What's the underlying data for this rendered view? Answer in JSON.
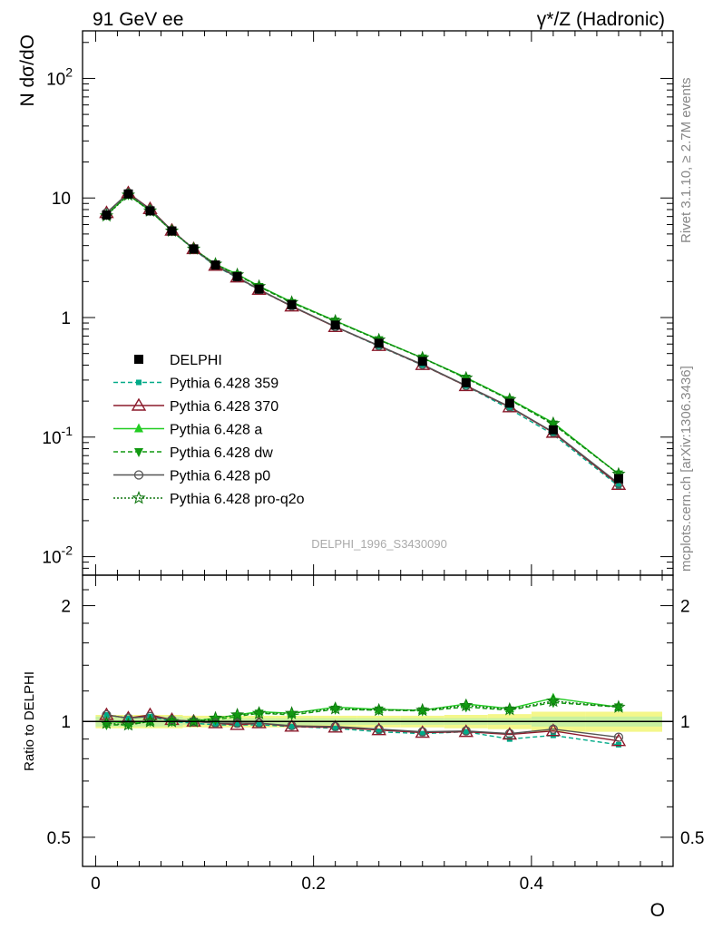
{
  "header": {
    "left_title": "91 GeV ee",
    "right_title": "γ*/Z (Hadronic)"
  },
  "side_labels": {
    "rivet": "Rivet 3.1.10, ≥ 2.7M events",
    "mcplots": "mcplots.cern.ch [arXiv:1306.3436]"
  },
  "watermark": "DELPHI_1996_S3430090",
  "chart_data": [
    {
      "type": "line",
      "panel": "main",
      "ylabel": "N dσ/dO",
      "yscale": "log",
      "ylim": [
        0.007,
        250
      ],
      "xlim": [
        -0.012,
        0.53
      ],
      "ytick_labels": [
        "10^-2",
        "10^-1",
        "1",
        "10",
        "10^2"
      ],
      "x": [
        0.01,
        0.03,
        0.05,
        0.07,
        0.09,
        0.11,
        0.13,
        0.15,
        0.18,
        0.22,
        0.26,
        0.3,
        0.34,
        0.38,
        0.42,
        0.48
      ],
      "series": [
        {
          "name": "DELPHI",
          "color": "#000000",
          "values": [
            7.2,
            10.8,
            7.8,
            5.3,
            3.75,
            2.75,
            2.2,
            1.73,
            1.28,
            0.865,
            0.61,
            0.43,
            0.285,
            0.192,
            0.115,
            0.045
          ]
        },
        {
          "name": "Pythia 6.428 359",
          "color": "#00aa88",
          "values": [
            7.5,
            11.0,
            8.0,
            5.3,
            3.7,
            2.7,
            2.15,
            1.7,
            1.24,
            0.835,
            0.575,
            0.4,
            0.268,
            0.172,
            0.105,
            0.039
          ]
        },
        {
          "name": "Pythia 6.428 370",
          "color": "#8b1a2b",
          "values": [
            7.5,
            11.0,
            8.1,
            5.35,
            3.75,
            2.72,
            2.17,
            1.71,
            1.24,
            0.835,
            0.58,
            0.402,
            0.268,
            0.178,
            0.109,
            0.04
          ]
        },
        {
          "name": "Pythia 6.428 a",
          "color": "#22cc22",
          "values": [
            7.2,
            10.7,
            7.8,
            5.3,
            3.75,
            2.8,
            2.3,
            1.83,
            1.35,
            0.94,
            0.655,
            0.46,
            0.315,
            0.208,
            0.132,
            0.049
          ]
        },
        {
          "name": "Pythia 6.428 dw",
          "color": "#119911",
          "values": [
            7.2,
            10.6,
            7.8,
            5.3,
            3.75,
            2.78,
            2.27,
            1.81,
            1.33,
            0.93,
            0.65,
            0.458,
            0.31,
            0.205,
            0.128,
            0.049
          ]
        },
        {
          "name": "Pythia 6.428 p0",
          "color": "#555555",
          "values": [
            7.5,
            11.0,
            8.0,
            5.35,
            3.75,
            2.74,
            2.18,
            1.72,
            1.25,
            0.84,
            0.582,
            0.405,
            0.27,
            0.18,
            0.11,
            0.041
          ]
        },
        {
          "name": "Pythia 6.428 pro-q2o",
          "color": "#117711",
          "values": [
            7.1,
            10.6,
            7.8,
            5.3,
            3.75,
            2.8,
            2.28,
            1.82,
            1.34,
            0.935,
            0.65,
            0.46,
            0.312,
            0.206,
            0.13,
            0.049
          ]
        }
      ]
    },
    {
      "type": "line",
      "panel": "ratio",
      "ylabel": "Ratio to DELPHI",
      "xlabel": "O",
      "yscale": "log",
      "ylim": [
        0.42,
        2.4
      ],
      "ytick_labels": [
        "0.5",
        "1",
        "2"
      ],
      "xtick_labels": [
        "0",
        "0.2",
        "0.4"
      ],
      "x": [
        0.01,
        0.03,
        0.05,
        0.07,
        0.09,
        0.11,
        0.13,
        0.15,
        0.18,
        0.22,
        0.26,
        0.3,
        0.34,
        0.38,
        0.42,
        0.48
      ],
      "band_inner": [
        0.03,
        0.03,
        0.03,
        0.03,
        0.02,
        0.02,
        0.02,
        0.02,
        0.02,
        0.02,
        0.02,
        0.02,
        0.02,
        0.02,
        0.03,
        0.03
      ],
      "band_outer": [
        0.04,
        0.04,
        0.04,
        0.04,
        0.035,
        0.035,
        0.035,
        0.035,
        0.035,
        0.035,
        0.035,
        0.035,
        0.04,
        0.045,
        0.06,
        0.06
      ],
      "series": [
        {
          "name": "Pythia 6.428 359",
          "values": [
            1.04,
            1.02,
            1.03,
            1.0,
            0.99,
            0.98,
            0.98,
            0.98,
            0.97,
            0.96,
            0.94,
            0.93,
            0.94,
            0.9,
            0.92,
            0.87
          ]
        },
        {
          "name": "Pythia 6.428 370",
          "values": [
            1.04,
            1.02,
            1.04,
            1.01,
            1.0,
            0.99,
            0.98,
            0.99,
            0.97,
            0.965,
            0.95,
            0.935,
            0.94,
            0.925,
            0.945,
            0.89
          ]
        },
        {
          "name": "Pythia 6.428 a",
          "values": [
            1.0,
            0.99,
            1.0,
            1.0,
            1.0,
            1.02,
            1.04,
            1.06,
            1.05,
            1.09,
            1.075,
            1.07,
            1.11,
            1.08,
            1.15,
            1.09
          ]
        },
        {
          "name": "Pythia 6.428 dw",
          "values": [
            0.98,
            0.98,
            1.0,
            1.0,
            1.0,
            1.01,
            1.03,
            1.05,
            1.04,
            1.075,
            1.07,
            1.065,
            1.09,
            1.07,
            1.12,
            1.09
          ]
        },
        {
          "name": "Pythia 6.428 p0",
          "values": [
            1.04,
            1.02,
            1.03,
            1.01,
            1.0,
            0.99,
            0.99,
            0.99,
            0.975,
            0.97,
            0.955,
            0.94,
            0.945,
            0.93,
            0.955,
            0.91
          ]
        },
        {
          "name": "Pythia 6.428 pro-q2o",
          "values": [
            0.99,
            0.98,
            1.0,
            1.0,
            1.0,
            1.02,
            1.04,
            1.05,
            1.05,
            1.08,
            1.07,
            1.07,
            1.1,
            1.075,
            1.13,
            1.09
          ]
        }
      ]
    }
  ]
}
